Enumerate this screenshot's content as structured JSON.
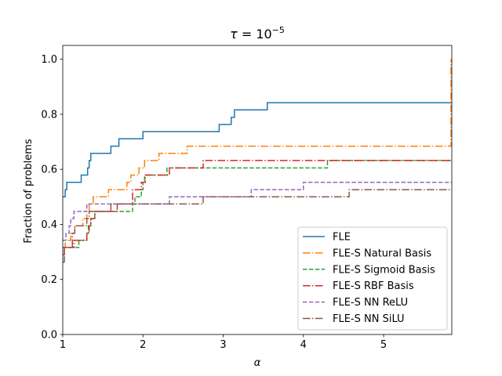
{
  "chart_data": {
    "type": "line",
    "title_tau": "τ",
    "title_eq": " = 10",
    "title_exp": "−5",
    "xlabel": "α",
    "ylabel": "Fraction of problems",
    "xlim": [
      1,
      5.85
    ],
    "ylim": [
      0,
      1.05
    ],
    "xticks": [
      1,
      2,
      3,
      4,
      5
    ],
    "xtick_labels": [
      "1",
      "2",
      "3",
      "4",
      "5"
    ],
    "yticks": [
      0.0,
      0.2,
      0.4,
      0.6,
      0.8,
      1.0
    ],
    "ytick_labels": [
      "0.0",
      "0.2",
      "0.4",
      "0.6",
      "0.8",
      "1.0"
    ],
    "legend_position": "lower-right",
    "series": [
      {
        "name": "FLE",
        "color": "#1f77b4",
        "dash": "solid",
        "steps": [
          [
            1.0,
            0.5
          ],
          [
            1.03,
            0.526
          ],
          [
            1.05,
            0.553
          ],
          [
            1.23,
            0.579
          ],
          [
            1.31,
            0.605
          ],
          [
            1.33,
            0.632
          ],
          [
            1.35,
            0.658
          ],
          [
            1.6,
            0.684
          ],
          [
            1.7,
            0.711
          ],
          [
            2.0,
            0.737
          ],
          [
            2.95,
            0.763
          ],
          [
            3.1,
            0.789
          ],
          [
            3.14,
            0.816
          ],
          [
            3.55,
            0.842
          ],
          [
            5.85,
            0.842
          ]
        ]
      },
      {
        "name": "FLE-S Natural Basis",
        "color": "#ff7f0e",
        "dash": "dashdot",
        "steps": [
          [
            1.0,
            0.316
          ],
          [
            1.03,
            0.342
          ],
          [
            1.1,
            0.368
          ],
          [
            1.15,
            0.395
          ],
          [
            1.25,
            0.421
          ],
          [
            1.3,
            0.447
          ],
          [
            1.33,
            0.474
          ],
          [
            1.38,
            0.5
          ],
          [
            1.57,
            0.526
          ],
          [
            1.8,
            0.553
          ],
          [
            1.85,
            0.579
          ],
          [
            1.95,
            0.605
          ],
          [
            2.02,
            0.632
          ],
          [
            2.2,
            0.658
          ],
          [
            2.55,
            0.684
          ],
          [
            5.84,
            0.684
          ],
          [
            5.84,
            1.0
          ]
        ]
      },
      {
        "name": "FLE-S Sigmoid Basis",
        "color": "#2ca02c",
        "dash": "dashed",
        "steps": [
          [
            1.0,
            0.316
          ],
          [
            1.2,
            0.342
          ],
          [
            1.3,
            0.368
          ],
          [
            1.32,
            0.395
          ],
          [
            1.35,
            0.421
          ],
          [
            1.4,
            0.447
          ],
          [
            1.87,
            0.474
          ],
          [
            1.9,
            0.5
          ],
          [
            1.98,
            0.526
          ],
          [
            2.0,
            0.553
          ],
          [
            2.02,
            0.579
          ],
          [
            2.3,
            0.605
          ],
          [
            4.3,
            0.632
          ],
          [
            5.85,
            0.632
          ]
        ]
      },
      {
        "name": "FLE-S RBF Basis",
        "color": "#d62728",
        "dash": "dashdot",
        "steps": [
          [
            1.0,
            0.289
          ],
          [
            1.02,
            0.316
          ],
          [
            1.14,
            0.342
          ],
          [
            1.3,
            0.368
          ],
          [
            1.33,
            0.395
          ],
          [
            1.35,
            0.421
          ],
          [
            1.4,
            0.447
          ],
          [
            1.68,
            0.474
          ],
          [
            1.87,
            0.526
          ],
          [
            1.98,
            0.553
          ],
          [
            2.03,
            0.579
          ],
          [
            2.33,
            0.605
          ],
          [
            2.75,
            0.632
          ],
          [
            5.85,
            0.632
          ]
        ]
      },
      {
        "name": "FLE-S NN ReLU",
        "color": "#9467bd",
        "dash": "dashed",
        "steps": [
          [
            1.0,
            0.342
          ],
          [
            1.04,
            0.368
          ],
          [
            1.08,
            0.395
          ],
          [
            1.1,
            0.421
          ],
          [
            1.14,
            0.447
          ],
          [
            1.3,
            0.474
          ],
          [
            2.33,
            0.5
          ],
          [
            3.35,
            0.526
          ],
          [
            4.0,
            0.553
          ],
          [
            5.85,
            0.553
          ]
        ]
      },
      {
        "name": "FLE-S NN SiLU",
        "color": "#8c564b",
        "dash": "dashdot",
        "steps": [
          [
            1.0,
            0.263
          ],
          [
            1.02,
            0.316
          ],
          [
            1.12,
            0.368
          ],
          [
            1.15,
            0.395
          ],
          [
            1.3,
            0.421
          ],
          [
            1.33,
            0.447
          ],
          [
            1.6,
            0.474
          ],
          [
            2.75,
            0.5
          ],
          [
            4.57,
            0.526
          ],
          [
            5.85,
            0.526
          ]
        ]
      }
    ]
  }
}
